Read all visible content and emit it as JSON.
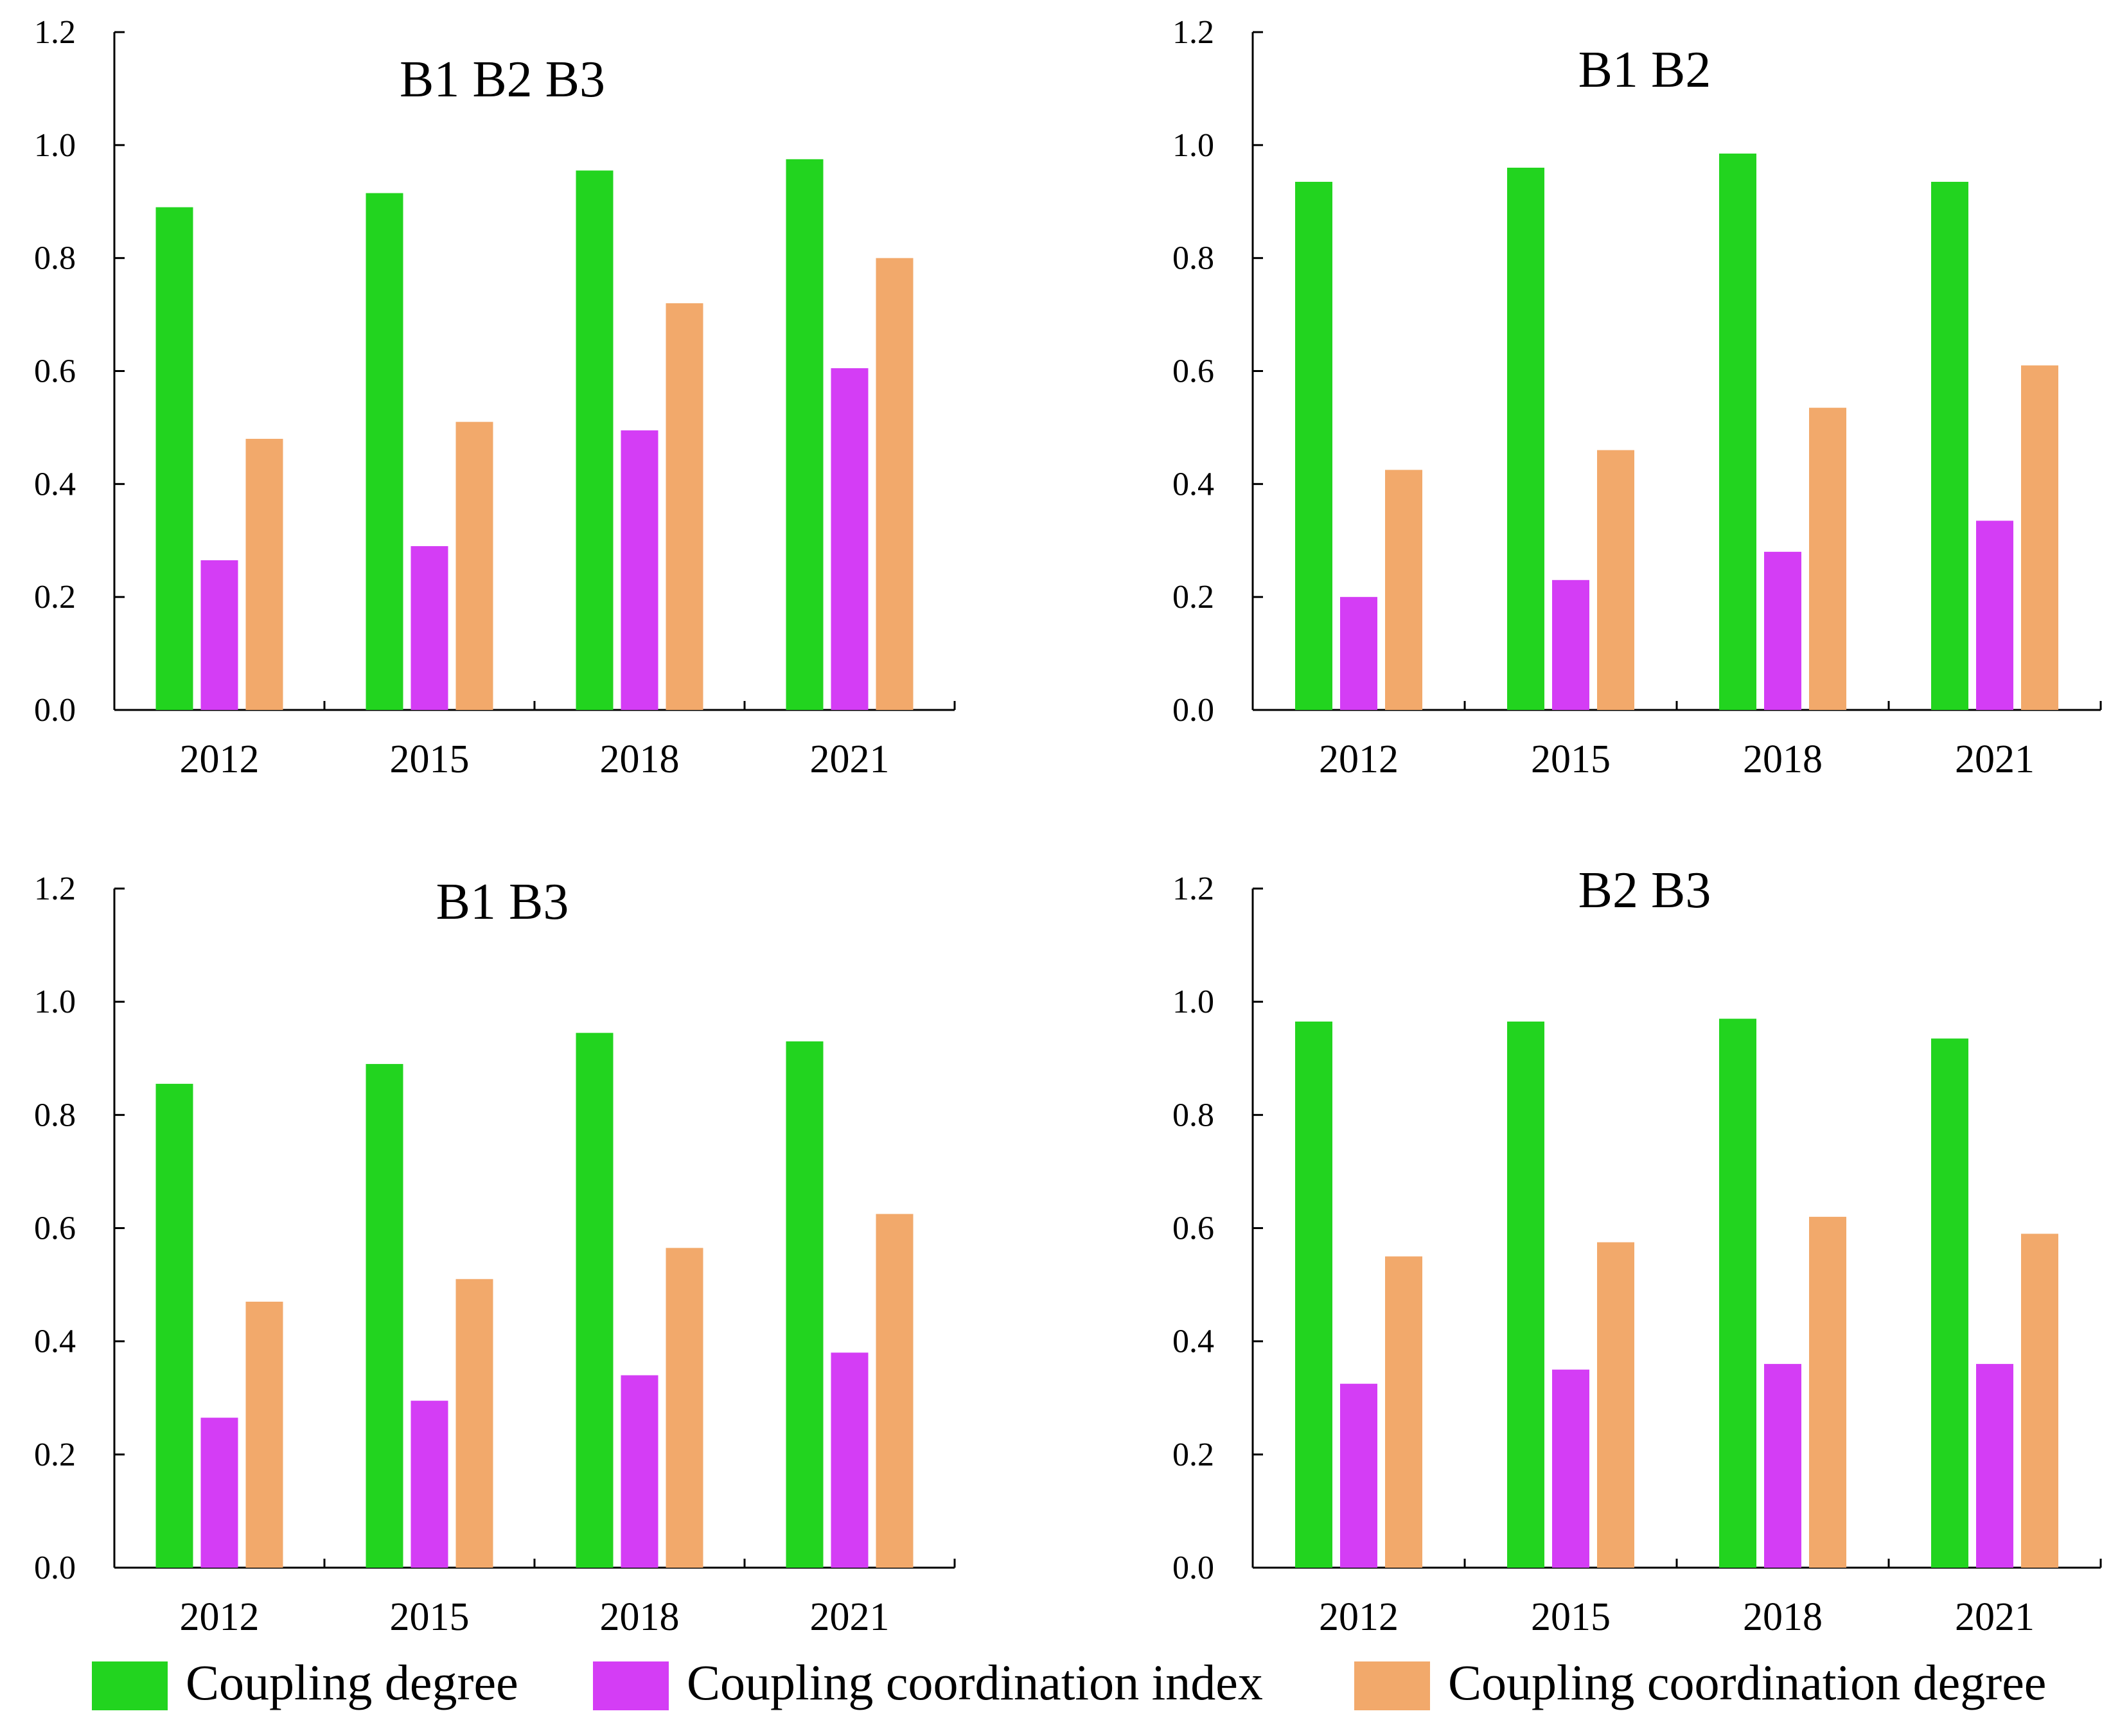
{
  "colors": {
    "coupling_degree": "#22d41f",
    "coupling_coordination_index": "#d43df5",
    "coupling_coordination_degree": "#f2a96b",
    "axis": "#000000"
  },
  "legend": {
    "placement": "bottom",
    "items": [
      {
        "label": "Coupling degree",
        "color_key": "coupling_degree"
      },
      {
        "label": "Coupling coordination index",
        "color_key": "coupling_coordination_index"
      },
      {
        "label": "Coupling coordination degree",
        "color_key": "coupling_coordination_degree"
      }
    ]
  },
  "chart_data": [
    {
      "type": "bar",
      "title": "B1 B2 B3",
      "categories": [
        "2012",
        "2015",
        "2018",
        "2021"
      ],
      "ylim": [
        0,
        1.2
      ],
      "yticks": [
        "0.0",
        "0.2",
        "0.4",
        "0.6",
        "0.8",
        "1.0",
        "1.2"
      ],
      "grid": false,
      "series": [
        {
          "name": "Coupling degree",
          "values": [
            0.89,
            0.915,
            0.955,
            0.975
          ]
        },
        {
          "name": "Coupling coordination index",
          "values": [
            0.265,
            0.29,
            0.495,
            0.605
          ]
        },
        {
          "name": "Coupling coordination degree",
          "values": [
            0.48,
            0.51,
            0.72,
            0.8
          ]
        }
      ]
    },
    {
      "type": "bar",
      "title": "B1 B2",
      "categories": [
        "2012",
        "2015",
        "2018",
        "2021"
      ],
      "ylim": [
        0,
        1.2
      ],
      "yticks": [
        "0.0",
        "0.2",
        "0.4",
        "0.6",
        "0.8",
        "1.0",
        "1.2"
      ],
      "grid": false,
      "series": [
        {
          "name": "Coupling degree",
          "values": [
            0.935,
            0.96,
            0.985,
            0.935
          ]
        },
        {
          "name": "Coupling coordination index",
          "values": [
            0.2,
            0.23,
            0.28,
            0.335
          ]
        },
        {
          "name": "Coupling coordination degree",
          "values": [
            0.425,
            0.46,
            0.535,
            0.61
          ]
        }
      ]
    },
    {
      "type": "bar",
      "title": "B1 B3",
      "categories": [
        "2012",
        "2015",
        "2018",
        "2021"
      ],
      "ylim": [
        0,
        1.2
      ],
      "yticks": [
        "0.0",
        "0.2",
        "0.4",
        "0.6",
        "0.8",
        "1.0",
        "1.2"
      ],
      "grid": false,
      "series": [
        {
          "name": "Coupling degree",
          "values": [
            0.855,
            0.89,
            0.945,
            0.93
          ]
        },
        {
          "name": "Coupling coordination index",
          "values": [
            0.265,
            0.295,
            0.34,
            0.38
          ]
        },
        {
          "name": "Coupling coordination degree",
          "values": [
            0.47,
            0.51,
            0.565,
            0.625
          ]
        }
      ]
    },
    {
      "type": "bar",
      "title": "B2 B3",
      "categories": [
        "2012",
        "2015",
        "2018",
        "2021"
      ],
      "ylim": [
        0,
        1.2
      ],
      "yticks": [
        "0.0",
        "0.2",
        "0.4",
        "0.6",
        "0.8",
        "1.0",
        "1.2"
      ],
      "grid": false,
      "series": [
        {
          "name": "Coupling degree",
          "values": [
            0.965,
            0.965,
            0.97,
            0.935
          ]
        },
        {
          "name": "Coupling coordination index",
          "values": [
            0.325,
            0.35,
            0.36,
            0.36
          ]
        },
        {
          "name": "Coupling coordination degree",
          "values": [
            0.55,
            0.575,
            0.62,
            0.59
          ]
        }
      ]
    }
  ]
}
